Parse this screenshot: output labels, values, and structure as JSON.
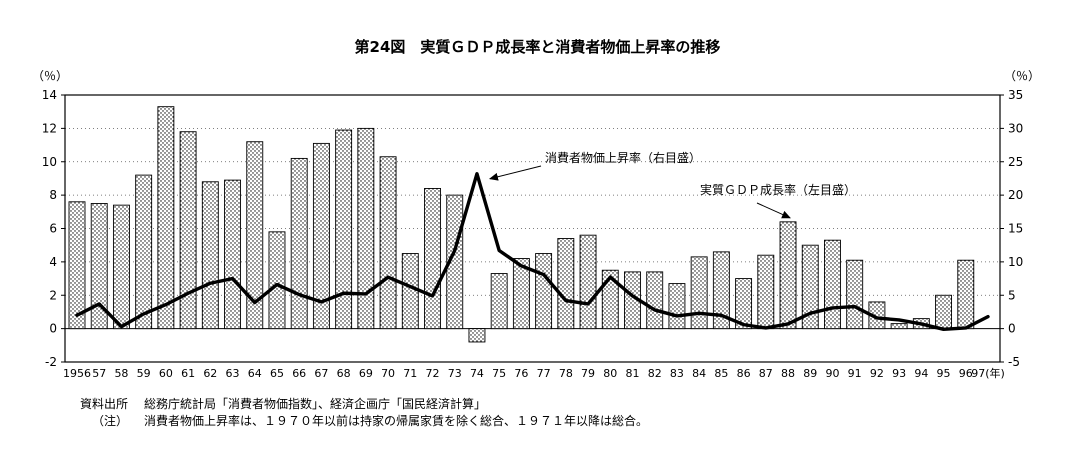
{
  "title": "第24図　実質ＧＤＰ成長率と消費者物価上昇率の推移",
  "left_axis_unit": "（％）",
  "right_axis_unit": "（％）",
  "footer": {
    "source_label": "資料出所",
    "source_text": "総務庁統計局「消費者物価指数」、経済企画庁「国民経済計算」",
    "note_label": "（注）",
    "note_text": "消費者物価上昇率は、１９７０年以前は持家の帰属家賃を除く総合、１９７１年以降は総合。"
  },
  "chart_data": {
    "type": "bar",
    "subtype": "bar+line combo, dual axis",
    "categories": [
      "1956",
      "57",
      "58",
      "59",
      "60",
      "61",
      "62",
      "63",
      "64",
      "65",
      "66",
      "67",
      "68",
      "69",
      "70",
      "71",
      "72",
      "73",
      "74",
      "75",
      "76",
      "77",
      "78",
      "79",
      "80",
      "81",
      "82",
      "83",
      "84",
      "85",
      "86",
      "87",
      "88",
      "89",
      "90",
      "91",
      "92",
      "93",
      "94",
      "95",
      "96",
      "97(年)"
    ],
    "series": [
      {
        "name": "実質ＧＤＰ成長率（左目盛）",
        "type": "bar",
        "axis": "left",
        "values": [
          7.6,
          7.5,
          7.4,
          9.2,
          13.3,
          11.8,
          8.8,
          8.9,
          11.2,
          5.8,
          10.2,
          11.1,
          11.9,
          12.0,
          10.3,
          4.5,
          8.4,
          8.0,
          -0.8,
          3.3,
          4.2,
          4.5,
          5.4,
          5.6,
          3.5,
          3.4,
          3.4,
          2.7,
          4.3,
          4.6,
          3.0,
          4.4,
          6.4,
          5.0,
          5.3,
          4.1,
          1.6,
          0.3,
          0.6,
          2.0,
          4.1,
          null
        ]
      },
      {
        "name": "消費者物価上昇率（右目盛）",
        "type": "line",
        "axis": "right",
        "values": [
          2.0,
          3.7,
          0.3,
          2.2,
          3.6,
          5.3,
          6.8,
          7.5,
          3.9,
          6.6,
          5.1,
          4.0,
          5.3,
          5.2,
          7.7,
          6.3,
          4.9,
          11.7,
          23.2,
          11.7,
          9.4,
          8.1,
          4.2,
          3.7,
          7.7,
          4.9,
          2.8,
          1.9,
          2.3,
          2.0,
          0.6,
          0.1,
          0.7,
          2.3,
          3.1,
          3.3,
          1.6,
          1.3,
          0.7,
          -0.1,
          0.1,
          1.8
        ]
      }
    ],
    "left_axis": {
      "min": -2,
      "max": 14,
      "ticks": [
        14,
        12,
        10,
        8,
        6,
        4,
        2,
        0,
        -2
      ],
      "label": "（％）"
    },
    "right_axis": {
      "min": -5,
      "max": 35,
      "ticks": [
        35,
        30,
        25,
        20,
        15,
        10,
        5,
        0,
        -5
      ],
      "label": "（％）"
    },
    "grid": "dotted horizontal lines, solid zero line, framed plot",
    "annotations": [
      {
        "label": "消費者物価上昇率（右目盛）",
        "target_year": "74",
        "series": "line"
      },
      {
        "label": "実質ＧＤＰ成長率（左目盛）",
        "target_year": "88",
        "series": "bar"
      }
    ],
    "xlabel": "",
    "ylabel": ""
  }
}
